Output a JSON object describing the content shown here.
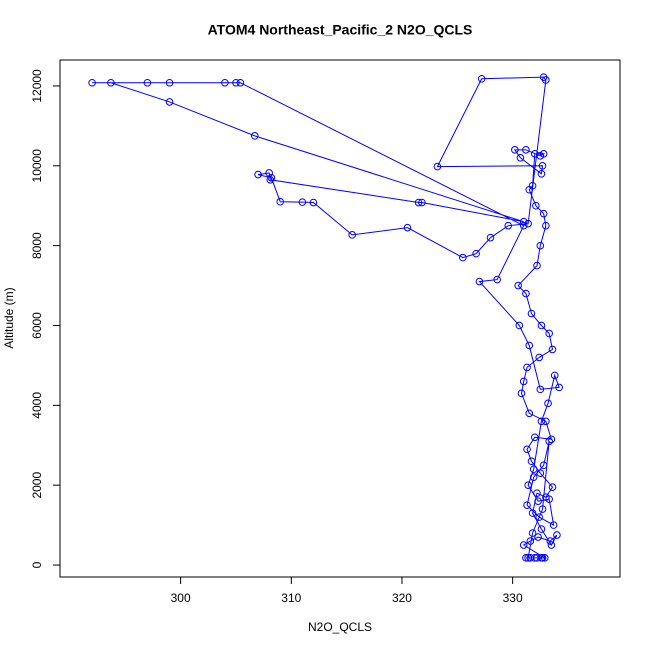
{
  "chart_data": {
    "type": "line-points",
    "title": "ATOM4 Northeast_Pacific_2 N2O_QCLS",
    "x_label": "N2O_QCLS",
    "y_label": "Altitude (m)",
    "xlim": [
      289.1,
      339.7
    ],
    "ylim": [
      -300,
      12650
    ],
    "xticks": [
      300,
      310,
      320,
      330
    ],
    "yticks": [
      0,
      2000,
      4000,
      6000,
      8000,
      10000,
      12000
    ],
    "series": [
      {
        "color": "#0000ff",
        "x": [
          331.2,
          331.6,
          332.0,
          332.6,
          332.9,
          331.0,
          331.6,
          332.3,
          333.4,
          334.0,
          333.5,
          332.6,
          331.8,
          332.2,
          333.0,
          333.6,
          332.5,
          331.7,
          331.3,
          332.0,
          333.5,
          333.0,
          331.5,
          330.8,
          331.0,
          331.3,
          332.4,
          333.6,
          333.3,
          332.6,
          331.7,
          331.2,
          330.5,
          332.2,
          332.5,
          333.0,
          332.8,
          332.1,
          331.5,
          331.8,
          332.0,
          332.8,
          332.5,
          331.2,
          330.2,
          330.7,
          332.6,
          332.7,
          323.2,
          327.2,
          332.8,
          333.0,
          331.4,
          329.6,
          328.0,
          326.7,
          325.5,
          320.5,
          315.5,
          312.0,
          311.0,
          309.0,
          308.2,
          307.0,
          308.0,
          308.1,
          321.5,
          321.8,
          331.0,
          306.7,
          299.0,
          293.7,
          292.0,
          297.0,
          299.0,
          304.0,
          305.0,
          305.4,
          331.0,
          328.6,
          327.0,
          330.6,
          331.5,
          332.5,
          334.2,
          333.8,
          333.2,
          332.6,
          331.9,
          331.4,
          332.3,
          333.3,
          333.7,
          332.4,
          331.3,
          331.9,
          332.8,
          333.3,
          332.7,
          331.8,
          331.4,
          332.2,
          332.7
        ],
        "y": [
          180,
          180,
          180,
          180,
          180,
          500,
          600,
          700,
          600,
          750,
          500,
          900,
          1300,
          1800,
          1700,
          1950,
          2300,
          2600,
          2900,
          3200,
          3150,
          3600,
          3800,
          4300,
          4600,
          4950,
          5200,
          5400,
          5800,
          6000,
          6300,
          6800,
          7000,
          7500,
          8000,
          8500,
          8800,
          9000,
          9400,
          9500,
          10300,
          10300,
          10250,
          10400,
          10400,
          10200,
          9800,
          10000,
          9980,
          12180,
          12220,
          12150,
          8550,
          8500,
          8200,
          7800,
          7700,
          8450,
          8270,
          9080,
          9090,
          9100,
          9700,
          9780,
          9820,
          9650,
          9080,
          9080,
          8600,
          10750,
          11600,
          12080,
          12080,
          12080,
          12080,
          12080,
          12080,
          12080,
          8500,
          7150,
          7100,
          6000,
          5500,
          4400,
          4450,
          4750,
          4050,
          3600,
          2400,
          2000,
          1600,
          1650,
          1000,
          1200,
          1500,
          2200,
          2500,
          3100,
          1400,
          800,
          180,
          180,
          180
        ]
      }
    ]
  }
}
